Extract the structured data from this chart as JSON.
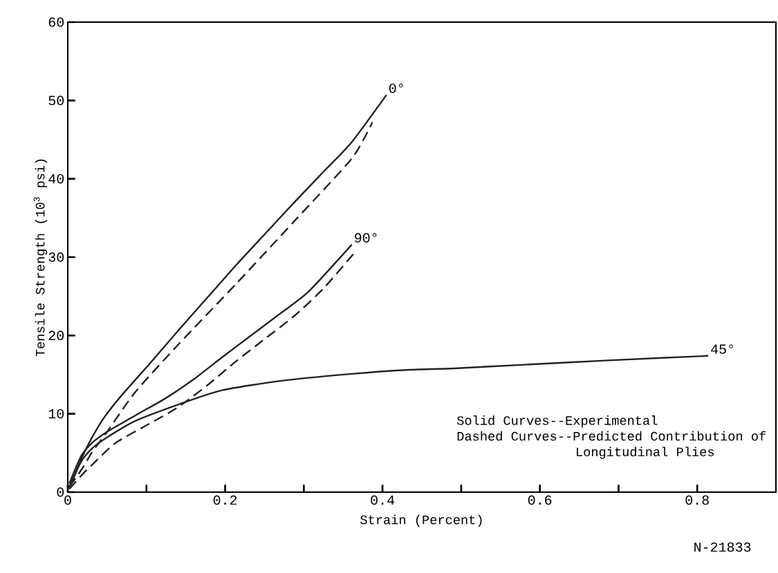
{
  "chart_data": {
    "type": "line",
    "xlabel": "Strain (Percent)",
    "ylabel": "Tensile Strength (10$^{3}$ psi)",
    "xlim": [
      0,
      0.9
    ],
    "ylim": [
      0,
      60
    ],
    "xticks": [
      0,
      {
        "value": 0.1,
        "label": null
      },
      0.2,
      {
        "value": 0.3,
        "label": null
      },
      0.4,
      {
        "value": 0.5,
        "label": null
      },
      0.6,
      {
        "value": 0.7,
        "label": null
      },
      0.8
    ],
    "yticks": [
      0,
      10,
      20,
      30,
      40,
      50,
      60
    ],
    "marker": "none",
    "grid": false,
    "series": [
      {
        "name": "0°",
        "color": "#222222",
        "line_style": "solid",
        "x": [
          0,
          0.006,
          0.017,
          0.031,
          0.046,
          0.068,
          0.105,
          0.141,
          0.178,
          0.215,
          0.251,
          0.288,
          0.325,
          0.361,
          0.405
        ],
        "values": [
          0.4,
          1.4,
          4.2,
          7.0,
          9.5,
          12.3,
          16.5,
          20.7,
          24.9,
          29.1,
          33.0,
          37.0,
          40.9,
          44.7,
          50.7
        ]
      },
      {
        "color": "#222222",
        "line_style": "dashed",
        "x": [
          0.002,
          0.017,
          0.031,
          0.05,
          0.086,
          0.141,
          0.215,
          0.288,
          0.361,
          0.387
        ],
        "values": [
          0.7,
          2.8,
          5.1,
          7.7,
          12.8,
          18.9,
          26.7,
          34.6,
          42.6,
          47.2
        ]
      },
      {
        "name": "90°",
        "color": "#222222",
        "line_style": "solid",
        "x": [
          0.002,
          0.017,
          0.031,
          0.05,
          0.086,
          0.123,
          0.16,
          0.196,
          0.233,
          0.27,
          0.306,
          0.361
        ],
        "values": [
          1.1,
          4.6,
          6.3,
          7.7,
          9.8,
          11.9,
          14.4,
          17.2,
          20.0,
          22.8,
          25.6,
          31.6
        ]
      },
      {
        "color": "#222222",
        "line_style": "dashed",
        "x": [
          0.002,
          0.017,
          0.031,
          0.061,
          0.105,
          0.141,
          0.178,
          0.215,
          0.251,
          0.288,
          0.325,
          0.363
        ],
        "values": [
          0.4,
          2.1,
          3.5,
          6.3,
          8.8,
          10.9,
          13.7,
          16.8,
          19.6,
          22.5,
          26.0,
          30.4
        ]
      },
      {
        "name": "45°",
        "color": "#222222",
        "line_style": "solid",
        "x": [
          0.002,
          0.017,
          0.031,
          0.05,
          0.086,
          0.141,
          0.196,
          0.27,
          0.361,
          0.43,
          0.491,
          0.587,
          0.683,
          0.814
        ],
        "values": [
          0.7,
          3.9,
          5.6,
          7.0,
          9.1,
          11.2,
          13.0,
          14.2,
          15.1,
          15.6,
          15.8,
          16.3,
          16.8,
          17.4
        ]
      }
    ],
    "annotations": [
      "Solid Curves--Experimental",
      "Dashed Curves--Predicted Contribution of",
      "Longitudinal Plies",
      "N-21833"
    ]
  }
}
